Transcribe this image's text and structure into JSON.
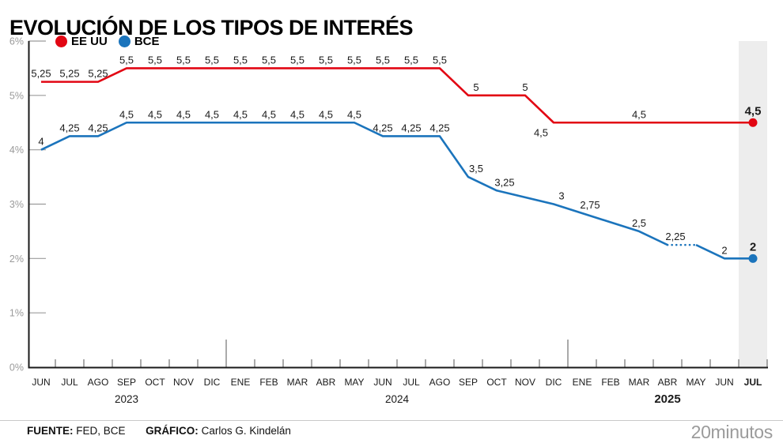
{
  "title": "EVOLUCIÓN DE LOS TIPOS DE INTERÉS",
  "legend": [
    {
      "label": "EE UU",
      "color": "#e20613"
    },
    {
      "label": "BCE",
      "color": "#1b74bc"
    }
  ],
  "footer": {
    "source_label": "FUENTE:",
    "source_value": "FED, BCE",
    "credit_label": "GRÁFICO:",
    "credit_value": "Carlos G. Kindelán",
    "brand": "20minutos"
  },
  "chart_data": {
    "type": "line",
    "title": "EVOLUCIÓN DE LOS TIPOS DE INTERÉS",
    "ylabel": "",
    "xlabel": "",
    "ylim": [
      0,
      6
    ],
    "grid": false,
    "legend_position": "top-left",
    "ytick_labels": [
      "6%",
      "5%",
      "4%",
      "3%",
      "2%",
      "1%",
      "0%"
    ],
    "months": [
      "JUN",
      "JUL",
      "AGO",
      "SEP",
      "OCT",
      "NOV",
      "DIC",
      "ENE",
      "FEB",
      "MAR",
      "ABR",
      "MAY",
      "JUN",
      "JUL",
      "AGO",
      "SEP",
      "OCT",
      "NOV",
      "DIC",
      "ENE",
      "FEB",
      "MAR",
      "ABR",
      "MAY",
      "JUN",
      "JUL"
    ],
    "bold_month_index": 25,
    "year_labels": [
      {
        "text": "2023",
        "anchor_index": 3,
        "bold": false
      },
      {
        "text": "2024",
        "anchor_index": 12.5,
        "bold": false
      },
      {
        "text": "2025",
        "anchor_index": 22,
        "bold": true
      }
    ],
    "year_separator_after_index": [
      6,
      18
    ],
    "highlight_band_index": 25,
    "band_color": "#ededed",
    "axis_color": "#1a1a1a",
    "tick_color": "#555555",
    "ytick_color": "#9b9b9b",
    "label_color": "#1a1a1a",
    "series": [
      {
        "name": "EE UU",
        "color": "#e20613",
        "end_dot": true,
        "dotted_segments": [],
        "points": [
          {
            "v": 5.25,
            "label": "5,25"
          },
          {
            "v": 5.25,
            "label": "5,25"
          },
          {
            "v": 5.25,
            "label": "5,25"
          },
          {
            "v": 5.5,
            "label": "5,5"
          },
          {
            "v": 5.5,
            "label": "5,5"
          },
          {
            "v": 5.5,
            "label": "5,5"
          },
          {
            "v": 5.5,
            "label": "5,5"
          },
          {
            "v": 5.5,
            "label": "5,5"
          },
          {
            "v": 5.5,
            "label": "5,5"
          },
          {
            "v": 5.5,
            "label": "5,5"
          },
          {
            "v": 5.5,
            "label": "5,5"
          },
          {
            "v": 5.5,
            "label": "5,5"
          },
          {
            "v": 5.5,
            "label": "5,5"
          },
          {
            "v": 5.5,
            "label": "5,5"
          },
          {
            "v": 5.5,
            "label": "5,5"
          },
          {
            "v": 5,
            "label": "5",
            "lp": "ar"
          },
          {
            "v": 5,
            "label": ""
          },
          {
            "v": 5,
            "label": "5"
          },
          {
            "v": 4.5,
            "label": "4,5",
            "lp": "bl"
          },
          {
            "v": 4.5,
            "label": ""
          },
          {
            "v": 4.5,
            "label": ""
          },
          {
            "v": 4.5,
            "label": "4,5"
          },
          {
            "v": 4.5,
            "label": ""
          },
          {
            "v": 4.5,
            "label": ""
          },
          {
            "v": 4.5,
            "label": ""
          },
          {
            "v": 4.5,
            "label": "4,5",
            "lp": "be"
          }
        ]
      },
      {
        "name": "BCE",
        "color": "#1b74bc",
        "end_dot": true,
        "dotted_segments": [
          [
            22,
            23
          ]
        ],
        "points": [
          {
            "v": 4,
            "label": "4"
          },
          {
            "v": 4.25,
            "label": "4,25"
          },
          {
            "v": 4.25,
            "label": "4,25"
          },
          {
            "v": 4.5,
            "label": "4,5"
          },
          {
            "v": 4.5,
            "label": "4,5"
          },
          {
            "v": 4.5,
            "label": "4,5"
          },
          {
            "v": 4.5,
            "label": "4,5"
          },
          {
            "v": 4.5,
            "label": "4,5"
          },
          {
            "v": 4.5,
            "label": "4,5"
          },
          {
            "v": 4.5,
            "label": "4,5"
          },
          {
            "v": 4.5,
            "label": "4,5"
          },
          {
            "v": 4.5,
            "label": "4,5"
          },
          {
            "v": 4.25,
            "label": "4,25"
          },
          {
            "v": 4.25,
            "label": "4,25"
          },
          {
            "v": 4.25,
            "label": "4,25"
          },
          {
            "v": 3.5,
            "label": "3,5",
            "lp": "ar"
          },
          {
            "v": 3.25,
            "label": "3,25",
            "lp": "ar"
          },
          {
            "v": null,
            "label": ""
          },
          {
            "v": 3,
            "label": "3",
            "lp": "ar"
          },
          {
            "v": null,
            "label": "2,75",
            "lp": "ar"
          },
          {
            "v": null,
            "label": ""
          },
          {
            "v": 2.5,
            "label": "2,5"
          },
          {
            "v": 2.25,
            "label": "2,25",
            "lp": "ar"
          },
          {
            "v": 2.25,
            "label": ""
          },
          {
            "v": 2,
            "label": "2"
          },
          {
            "v": 2,
            "label": "2",
            "lp": "be"
          }
        ]
      }
    ]
  }
}
